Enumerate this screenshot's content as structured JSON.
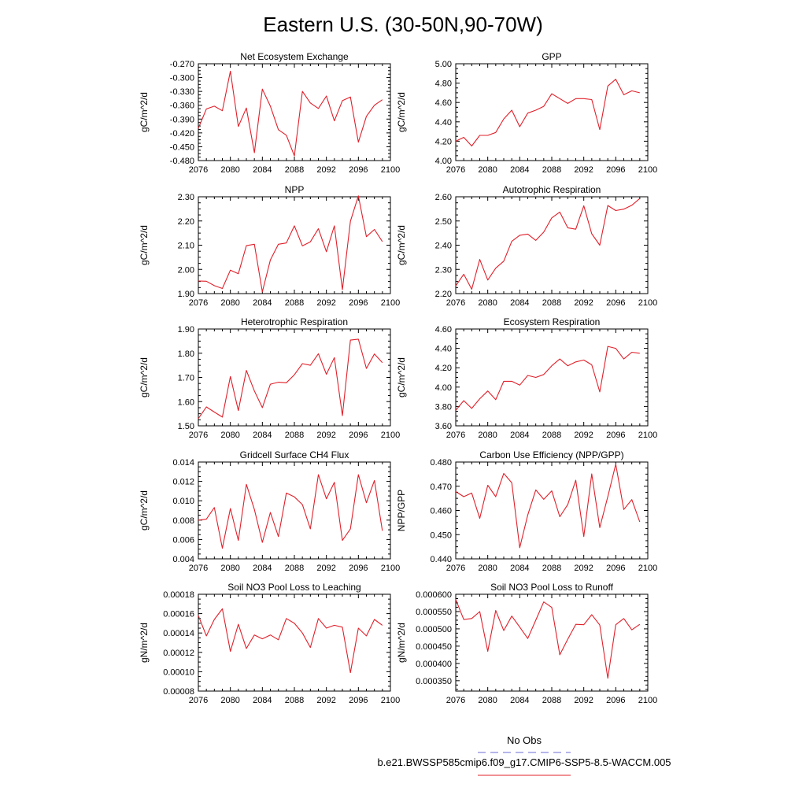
{
  "figure": {
    "title": "Eastern U.S. (30-50N,90-70W)",
    "legend": {
      "entries": [
        {
          "label": "No Obs",
          "color": "#6b6bd6",
          "style": "dashed"
        },
        {
          "label": "b.e21.BWSSP585cmip6.f09_g17.CMIP6-SSP5-8.5-WACCM.005",
          "color": "#e0202a",
          "style": "solid"
        }
      ]
    }
  },
  "chart_data": [
    {
      "type": "line",
      "title": "Net Ecosystem Exchange",
      "xlabel": "",
      "ylabel": "gC/m^2/d",
      "xlim": [
        2076,
        2100
      ],
      "ylim": [
        -0.48,
        -0.27
      ],
      "xticks": [
        "2076",
        "2080",
        "2084",
        "2088",
        "2092",
        "2096",
        "2100"
      ],
      "yticks": [
        "-0.480",
        "-0.450",
        "-0.420",
        "-0.390",
        "-0.360",
        "-0.330",
        "-0.300",
        "-0.270"
      ],
      "series": [
        {
          "color": "#e0202a",
          "x": [
            2076,
            2077,
            2078,
            2079,
            2080,
            2081,
            2082,
            2083,
            2084,
            2085,
            2086,
            2087,
            2088,
            2089,
            2090,
            2091,
            2092,
            2093,
            2094,
            2095,
            2096,
            2097,
            2098,
            2099
          ],
          "y": [
            -0.41,
            -0.368,
            -0.362,
            -0.372,
            -0.286,
            -0.406,
            -0.366,
            -0.463,
            -0.325,
            -0.362,
            -0.413,
            -0.425,
            -0.47,
            -0.33,
            -0.355,
            -0.367,
            -0.34,
            -0.394,
            -0.35,
            -0.342,
            -0.44,
            -0.384,
            -0.36,
            -0.348
          ]
        }
      ]
    },
    {
      "type": "line",
      "title": "GPP",
      "xlabel": "",
      "ylabel": "gC/m^2/d",
      "xlim": [
        2076,
        2100
      ],
      "ylim": [
        4.0,
        5.0
      ],
      "xticks": [
        "2076",
        "2080",
        "2084",
        "2088",
        "2092",
        "2096",
        "2100"
      ],
      "yticks": [
        "4.00",
        "4.20",
        "4.40",
        "4.60",
        "4.80",
        "5.00"
      ],
      "series": [
        {
          "color": "#e0202a",
          "x": [
            2076,
            2077,
            2078,
            2079,
            2080,
            2081,
            2082,
            2083,
            2084,
            2085,
            2086,
            2087,
            2088,
            2089,
            2090,
            2091,
            2092,
            2093,
            2094,
            2095,
            2096,
            2097,
            2098,
            2099
          ],
          "y": [
            4.2,
            4.24,
            4.15,
            4.26,
            4.26,
            4.29,
            4.43,
            4.52,
            4.35,
            4.49,
            4.52,
            4.56,
            4.69,
            4.64,
            4.59,
            4.64,
            4.64,
            4.63,
            4.32,
            4.77,
            4.84,
            4.68,
            4.72,
            4.7
          ]
        }
      ]
    },
    {
      "type": "line",
      "title": "NPP",
      "xlabel": "",
      "ylabel": "gC/m^2/d",
      "xlim": [
        2076,
        2100
      ],
      "ylim": [
        1.9,
        2.3
      ],
      "xticks": [
        "2076",
        "2080",
        "2084",
        "2088",
        "2092",
        "2096",
        "2100"
      ],
      "yticks": [
        "1.90",
        "2.00",
        "2.10",
        "2.20",
        "2.30"
      ],
      "series": [
        {
          "color": "#e0202a",
          "x": [
            2076,
            2077,
            2078,
            2079,
            2080,
            2081,
            2082,
            2083,
            2084,
            2085,
            2086,
            2087,
            2088,
            2089,
            2090,
            2091,
            2092,
            2093,
            2094,
            2095,
            2096,
            2097,
            2098,
            2099
          ],
          "y": [
            1.952,
            1.951,
            1.933,
            1.921,
            1.997,
            1.982,
            2.098,
            2.104,
            1.907,
            2.039,
            2.104,
            2.109,
            2.18,
            2.097,
            2.114,
            2.168,
            2.073,
            2.18,
            1.916,
            2.199,
            2.304,
            2.135,
            2.165,
            2.115
          ]
        }
      ]
    },
    {
      "type": "line",
      "title": "Autotrophic Respiration",
      "xlabel": "",
      "ylabel": "gC/m^2/d",
      "xlim": [
        2076,
        2100
      ],
      "ylim": [
        2.2,
        2.6
      ],
      "xticks": [
        "2076",
        "2080",
        "2084",
        "2088",
        "2092",
        "2096",
        "2100"
      ],
      "yticks": [
        "2.20",
        "2.30",
        "2.40",
        "2.50",
        "2.60"
      ],
      "series": [
        {
          "color": "#e0202a",
          "x": [
            2076,
            2077,
            2078,
            2079,
            2080,
            2081,
            2082,
            2083,
            2084,
            2085,
            2086,
            2087,
            2088,
            2089,
            2090,
            2091,
            2092,
            2093,
            2094,
            2095,
            2096,
            2097,
            2098,
            2099
          ],
          "y": [
            2.232,
            2.28,
            2.218,
            2.341,
            2.256,
            2.305,
            2.334,
            2.416,
            2.441,
            2.446,
            2.42,
            2.454,
            2.513,
            2.537,
            2.472,
            2.466,
            2.563,
            2.447,
            2.4,
            2.564,
            2.543,
            2.549,
            2.565,
            2.593
          ]
        }
      ]
    },
    {
      "type": "line",
      "title": "Heterotrophic Respiration",
      "xlabel": "",
      "ylabel": "gC/m^2/d",
      "xlim": [
        2076,
        2100
      ],
      "ylim": [
        1.5,
        1.9
      ],
      "xticks": [
        "2076",
        "2080",
        "2084",
        "2088",
        "2092",
        "2096",
        "2100"
      ],
      "yticks": [
        "1.50",
        "1.60",
        "1.70",
        "1.80",
        "1.90"
      ],
      "series": [
        {
          "color": "#e0202a",
          "x": [
            2076,
            2077,
            2078,
            2079,
            2080,
            2081,
            2082,
            2083,
            2084,
            2085,
            2086,
            2087,
            2088,
            2089,
            2090,
            2091,
            2092,
            2093,
            2094,
            2095,
            2096,
            2097,
            2098,
            2099
          ],
          "y": [
            1.53,
            1.578,
            1.557,
            1.536,
            1.704,
            1.563,
            1.729,
            1.644,
            1.575,
            1.672,
            1.68,
            1.678,
            1.711,
            1.757,
            1.75,
            1.798,
            1.713,
            1.782,
            1.542,
            1.854,
            1.858,
            1.737,
            1.797,
            1.761
          ]
        }
      ]
    },
    {
      "type": "line",
      "title": "Ecosystem Respiration",
      "xlabel": "",
      "ylabel": "gC/m^2/d",
      "xlim": [
        2076,
        2100
      ],
      "ylim": [
        3.6,
        4.6
      ],
      "xticks": [
        "2076",
        "2080",
        "2084",
        "2088",
        "2092",
        "2096",
        "2100"
      ],
      "yticks": [
        "3.60",
        "3.80",
        "4.00",
        "4.20",
        "4.40",
        "4.60"
      ],
      "series": [
        {
          "color": "#e0202a",
          "x": [
            2076,
            2077,
            2078,
            2079,
            2080,
            2081,
            2082,
            2083,
            2084,
            2085,
            2086,
            2087,
            2088,
            2089,
            2090,
            2091,
            2092,
            2093,
            2094,
            2095,
            2096,
            2097,
            2098,
            2099
          ],
          "y": [
            3.76,
            3.86,
            3.78,
            3.88,
            3.96,
            3.87,
            4.06,
            4.06,
            4.02,
            4.12,
            4.1,
            4.13,
            4.22,
            4.29,
            4.22,
            4.26,
            4.28,
            4.23,
            3.95,
            4.42,
            4.4,
            4.29,
            4.36,
            4.35
          ]
        }
      ]
    },
    {
      "type": "line",
      "title": "Gridcell Surface CH4 Flux",
      "xlabel": "",
      "ylabel": "gC/m^2/d",
      "xlim": [
        2076,
        2100
      ],
      "ylim": [
        0.004,
        0.014
      ],
      "xticks": [
        "2076",
        "2080",
        "2084",
        "2088",
        "2092",
        "2096",
        "2100"
      ],
      "yticks": [
        "0.004",
        "0.006",
        "0.008",
        "0.010",
        "0.012",
        "0.014"
      ],
      "series": [
        {
          "color": "#e0202a",
          "x": [
            2076,
            2077,
            2078,
            2079,
            2080,
            2081,
            2082,
            2083,
            2084,
            2085,
            2086,
            2087,
            2088,
            2089,
            2090,
            2091,
            2092,
            2093,
            2094,
            2095,
            2096,
            2097,
            2098,
            2099
          ],
          "y": [
            0.008,
            0.0081,
            0.0093,
            0.0051,
            0.0092,
            0.0059,
            0.0117,
            0.0091,
            0.0057,
            0.0088,
            0.0063,
            0.0108,
            0.0104,
            0.0096,
            0.0071,
            0.0127,
            0.0102,
            0.0119,
            0.0059,
            0.0071,
            0.0127,
            0.0098,
            0.0121,
            0.0069
          ]
        }
      ]
    },
    {
      "type": "line",
      "title": "Carbon Use Efficiency (NPP/GPP)",
      "xlabel": "",
      "ylabel": "NPP/GPP",
      "xlim": [
        2076,
        2100
      ],
      "ylim": [
        0.44,
        0.48
      ],
      "xticks": [
        "2076",
        "2080",
        "2084",
        "2088",
        "2092",
        "2096",
        "2100"
      ],
      "yticks": [
        "0.440",
        "0.450",
        "0.460",
        "0.470",
        "0.480"
      ],
      "series": [
        {
          "color": "#e0202a",
          "x": [
            2076,
            2077,
            2078,
            2079,
            2080,
            2081,
            2082,
            2083,
            2084,
            2085,
            2086,
            2087,
            2088,
            2089,
            2090,
            2091,
            2092,
            2093,
            2094,
            2095,
            2096,
            2097,
            2098,
            2099
          ],
          "y": [
            0.4678,
            0.4657,
            0.4672,
            0.4567,
            0.4704,
            0.4657,
            0.4753,
            0.4714,
            0.4446,
            0.4581,
            0.4685,
            0.4646,
            0.4681,
            0.4574,
            0.4624,
            0.4725,
            0.4492,
            0.4751,
            0.4529,
            0.4657,
            0.4791,
            0.4604,
            0.4645,
            0.4553
          ]
        }
      ]
    },
    {
      "type": "line",
      "title": "Soil NO3 Pool Loss to Leaching",
      "xlabel": "",
      "ylabel": "gN/m^2/d",
      "xlim": [
        2076,
        2100
      ],
      "ylim": [
        8e-05,
        0.00018
      ],
      "xticks": [
        "2076",
        "2080",
        "2084",
        "2088",
        "2092",
        "2096",
        "2100"
      ],
      "yticks": [
        "0.00008",
        "0.00010",
        "0.00012",
        "0.00014",
        "0.00016",
        "0.00018"
      ],
      "series": [
        {
          "color": "#e0202a",
          "x": [
            2076,
            2077,
            2078,
            2079,
            2080,
            2081,
            2082,
            2083,
            2084,
            2085,
            2086,
            2087,
            2088,
            2089,
            2090,
            2091,
            2092,
            2093,
            2094,
            2095,
            2096,
            2097,
            2098,
            2099
          ],
          "y": [
            0.000158,
            0.000137,
            0.000154,
            0.000165,
            0.000121,
            0.000149,
            0.000124,
            0.000138,
            0.000134,
            0.000138,
            0.000133,
            0.000155,
            0.00015,
            0.00014,
            0.000125,
            0.000155,
            0.000145,
            0.000148,
            0.000146,
            9.9e-05,
            0.000145,
            0.000137,
            0.000154,
            0.000148
          ]
        }
      ]
    },
    {
      "type": "line",
      "title": "Soil NO3 Pool Loss to Runoff",
      "xlabel": "",
      "ylabel": "gN/m^2/d",
      "xlim": [
        2076,
        2100
      ],
      "ylim": [
        0.00032,
        0.0006
      ],
      "xticks": [
        "2076",
        "2080",
        "2084",
        "2088",
        "2092",
        "2096",
        "2100"
      ],
      "yticks": [
        "0.000350",
        "0.000400",
        "0.000450",
        "0.000500",
        "0.000550",
        "0.000600"
      ],
      "series": [
        {
          "color": "#e0202a",
          "x": [
            2076,
            2077,
            2078,
            2079,
            2080,
            2081,
            2082,
            2083,
            2084,
            2085,
            2086,
            2087,
            2088,
            2089,
            2090,
            2091,
            2092,
            2093,
            2094,
            2095,
            2096,
            2097,
            2098,
            2099
          ],
          "y": [
            0.000585,
            0.000527,
            0.00053,
            0.00055,
            0.000435,
            0.000553,
            0.000495,
            0.000537,
            0.000505,
            0.000472,
            0.000525,
            0.000578,
            0.000562,
            0.000425,
            0.00047,
            0.000513,
            0.000512,
            0.000541,
            0.000511,
            0.000357,
            0.000512,
            0.00053,
            0.000497,
            0.000513
          ]
        }
      ]
    }
  ]
}
